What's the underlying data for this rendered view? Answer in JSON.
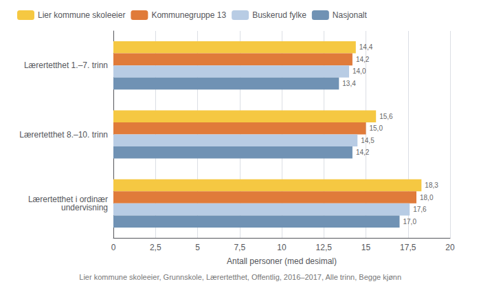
{
  "chart_data": {
    "type": "bar",
    "orientation": "horizontal",
    "categories": [
      "Lærertetthet i ordinær\nundervisning",
      "Lærertetthet 8.–10. trinn",
      "Lærertetthet 1.–7. trinn"
    ],
    "series": [
      {
        "name": "Lier kommune skoleeier",
        "color": "#F5C842",
        "values": [
          18.3,
          15.6,
          14.4
        ],
        "value_labels": [
          "18,3",
          "15,6",
          "14,4"
        ]
      },
      {
        "name": "Kommunegruppe 13",
        "color": "#E07B3A",
        "values": [
          18.0,
          15.0,
          14.2
        ],
        "value_labels": [
          "18,0",
          "15,0",
          "14,2"
        ]
      },
      {
        "name": "Buskerud fylke",
        "color": "#B8CCE4",
        "values": [
          17.6,
          14.5,
          14.0
        ],
        "value_labels": [
          "17,6",
          "14,5",
          "14,0"
        ]
      },
      {
        "name": "Nasjonalt",
        "color": "#7092B4",
        "values": [
          17.0,
          14.2,
          13.4
        ],
        "value_labels": [
          "17,0",
          "14,2",
          "13,4"
        ]
      }
    ],
    "xlabel": "Antall personer (med desimal)",
    "xlim": [
      0,
      20
    ],
    "xticks": [
      0,
      {
        "value": 2.5,
        "label": "2,5"
      },
      5,
      {
        "value": 7.5,
        "label": "7,5"
      },
      10,
      {
        "value": 12.5,
        "label": "12,5"
      },
      15,
      {
        "value": 17.5,
        "label": "17,5"
      },
      20
    ],
    "footnote": "Lier kommune skoleeier, Grunnskole, Lærertetthet, Offentlig, 2016–2017, Alle trinn, Begge kjønn",
    "grid": true,
    "legend": "upper left",
    "data_labels": true
  }
}
